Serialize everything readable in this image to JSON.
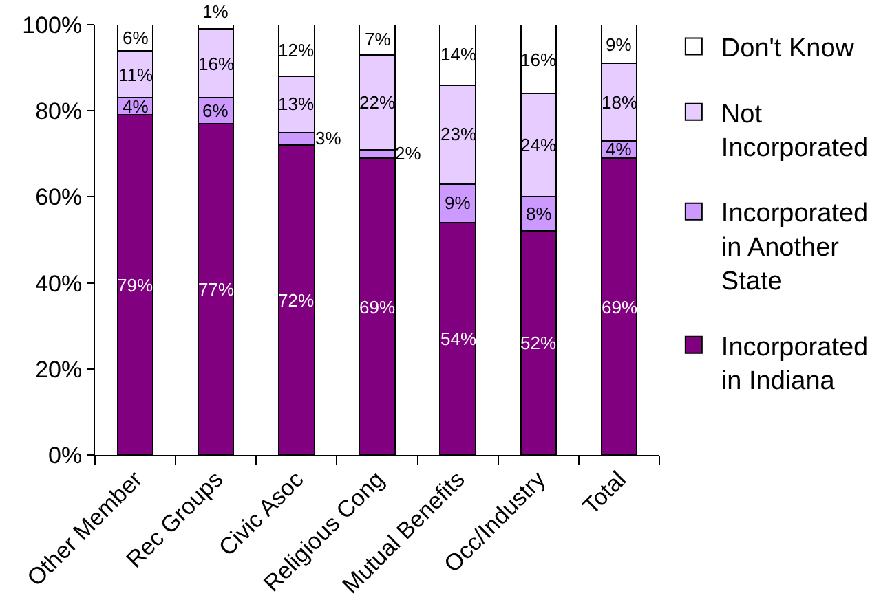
{
  "chart_data": {
    "type": "bar",
    "stacked": true,
    "categories": [
      "Other Member",
      "Rec Groups",
      "Civic Asoc",
      "Religious Cong",
      "Mutual Benefits",
      "Occ/Industry",
      "Total"
    ],
    "series": [
      {
        "name": "Incorporated in Indiana",
        "color": "#800080",
        "values": [
          79,
          77,
          72,
          69,
          54,
          52,
          69
        ],
        "value_labels": [
          "79%",
          "77%",
          "72%",
          "69%",
          "54%",
          "52%",
          "69%"
        ]
      },
      {
        "name": "Incorporated in Another State",
        "color": "#cc99ff",
        "values": [
          4,
          6,
          3,
          2,
          9,
          8,
          4
        ],
        "value_labels": [
          "4%",
          "6%",
          "3%",
          "2%",
          "9%",
          "8%",
          "4%"
        ]
      },
      {
        "name": "Not Incorporated",
        "color": "#e6ccff",
        "values": [
          11,
          16,
          13,
          22,
          23,
          24,
          18
        ],
        "value_labels": [
          "11%",
          "16%",
          "13%",
          "22%",
          "23%",
          "24%",
          "18%"
        ]
      },
      {
        "name": "Don't Know",
        "color": "#ffffff",
        "values": [
          6,
          1,
          12,
          7,
          14,
          16,
          9
        ],
        "value_labels": [
          "6%",
          "1%",
          "12%",
          "7%",
          "14%",
          "16%",
          "9%"
        ]
      }
    ],
    "ylim": [
      0,
      100
    ],
    "yticks": [
      {
        "value": 0,
        "label": "0%"
      },
      {
        "value": 20,
        "label": "20%"
      },
      {
        "value": 40,
        "label": "40%"
      },
      {
        "value": 60,
        "label": "60%"
      },
      {
        "value": 80,
        "label": "80%"
      },
      {
        "value": 100,
        "label": "100%"
      }
    ],
    "legend": "right"
  }
}
